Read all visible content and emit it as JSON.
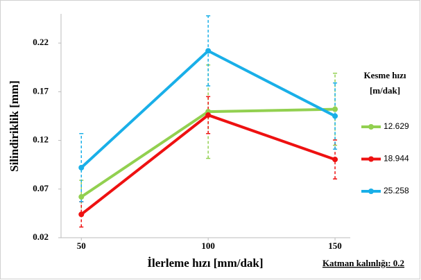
{
  "chart_data": {
    "type": "line",
    "x_label": "İlerleme hızı [mm/dak]",
    "y_label": "Silindiriklik [mm]",
    "legend_title": [
      "Kesme hızı",
      "[m/dak]"
    ],
    "footnote": "Katman kalınlığı: 0.2",
    "x": [
      50,
      100,
      150
    ],
    "xlim": [
      42,
      156
    ],
    "xticks": [
      50,
      100,
      150
    ],
    "ylim": [
      0.02,
      0.25
    ],
    "yticks": [
      0.02,
      0.07,
      0.12,
      0.17,
      0.22
    ],
    "legend": "right",
    "series": [
      {
        "name": "12.629",
        "color": "#92d050",
        "values": [
          0.062,
          0.1495,
          0.152
        ],
        "errors": [
          0.017,
          0.048,
          0.037
        ]
      },
      {
        "name": "18.944",
        "color": "#ee1111",
        "values": [
          0.044,
          0.146,
          0.1004
        ],
        "errors": [
          0.013,
          0.019,
          0.02
        ]
      },
      {
        "name": "25.258",
        "color": "#19afe8",
        "values": [
          0.092,
          0.212,
          0.145
        ],
        "errors": [
          0.035,
          0.036,
          0.034
        ]
      }
    ]
  }
}
